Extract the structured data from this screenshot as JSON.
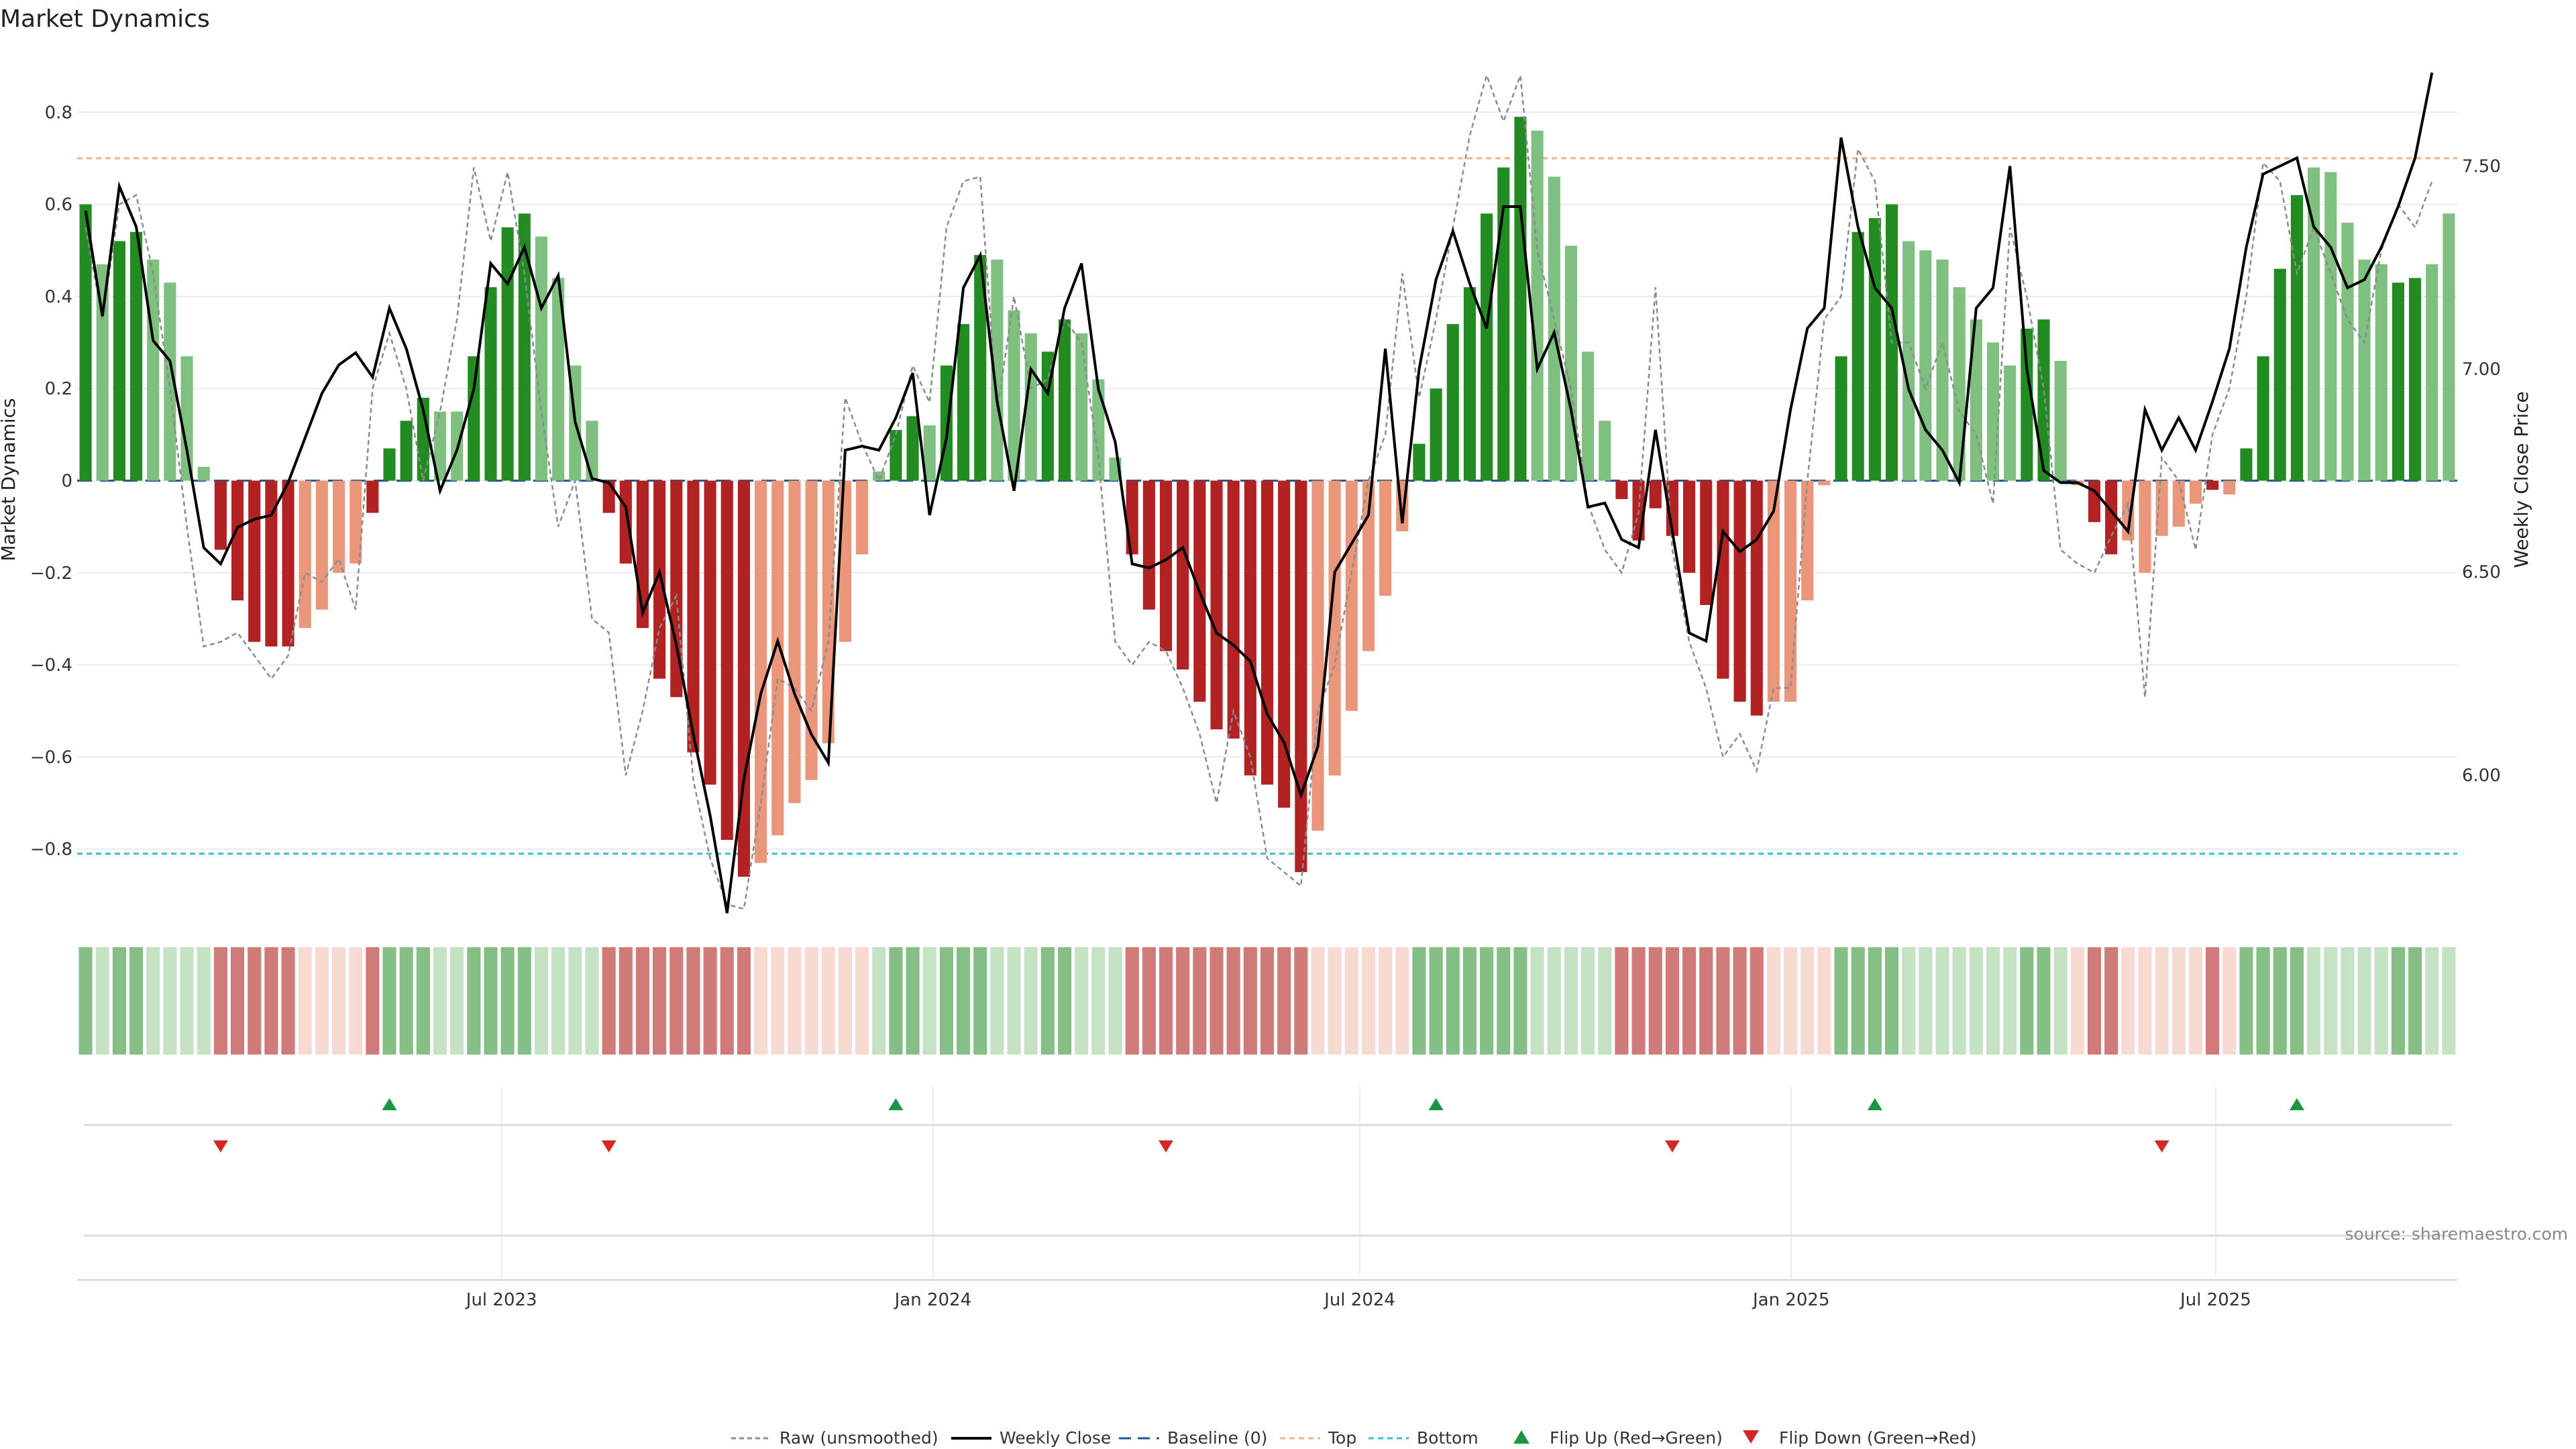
{
  "title": "Market Dynamics",
  "source": "source: sharemaestro.com",
  "colors": {
    "strong_green": "#228b22",
    "light_green": "#7fbf7f",
    "strong_red": "#b22222",
    "light_red": "#e9967a",
    "raw": "#8c8c8c",
    "close": "#000000",
    "baseline": "#1f5a96",
    "top": "#f0b48c",
    "bottom": "#33c3d6",
    "flip_up": "#1a9641",
    "flip_down": "#d62728"
  },
  "chart_data": {
    "type": "bar",
    "title": "Market Dynamics",
    "ylabel": "Market Dynamics",
    "y2label": "Weekly Close Price",
    "ylim": [
      -0.93,
      0.93
    ],
    "y2lim": [
      5.67,
      7.78
    ],
    "yticks": [
      0.8,
      0.6,
      0.4,
      0.2,
      0,
      -0.2,
      -0.4,
      -0.6,
      -0.8
    ],
    "yticklabels": [
      "0.8",
      "0.6",
      "0.4",
      "0.2",
      "0",
      "−0.2",
      "−0.4",
      "−0.6",
      "−0.8"
    ],
    "y2ticks": [
      7.5,
      7.0,
      6.5,
      6.0
    ],
    "y2ticklabels": [
      "7.50",
      "7.00",
      "6.50",
      "6.00"
    ],
    "xaxis": {
      "start": "2023-01-01",
      "end": "2025-10-12",
      "ticks": [
        {
          "date": "2023-07-01",
          "label": "Jul 2023"
        },
        {
          "date": "2024-01-01",
          "label": "Jan 2024"
        },
        {
          "date": "2024-07-01",
          "label": "Jul 2024"
        },
        {
          "date": "2025-01-01",
          "label": "Jan 2025"
        },
        {
          "date": "2025-07-01",
          "label": "Jul 2025"
        }
      ]
    },
    "top_threshold": 0.7,
    "bottom_threshold": -0.81,
    "baseline": 0,
    "legend": {
      "placement": "bottom-center",
      "entries": [
        {
          "key": "raw",
          "label": "Raw (unsmoothed)"
        },
        {
          "key": "close",
          "label": "Weekly Close"
        },
        {
          "key": "baseline",
          "label": "Baseline (0)"
        },
        {
          "key": "top",
          "label": "Top"
        },
        {
          "key": "bottom",
          "label": "Bottom"
        },
        {
          "key": "flip_up",
          "label": "Flip Up (Red→Green)"
        },
        {
          "key": "flip_down",
          "label": "Flip Down (Green→Red)"
        }
      ]
    },
    "momentum": [
      0.6,
      0.47,
      0.52,
      0.54,
      0.48,
      0.43,
      0.27,
      0.03,
      -0.15,
      -0.26,
      -0.35,
      -0.36,
      -0.36,
      -0.32,
      -0.28,
      -0.2,
      -0.18,
      -0.07,
      0.07,
      0.13,
      0.18,
      0.15,
      0.15,
      0.27,
      0.42,
      0.55,
      0.58,
      0.53,
      0.44,
      0.25,
      0.13,
      -0.07,
      -0.18,
      -0.32,
      -0.43,
      -0.47,
      -0.59,
      -0.66,
      -0.78,
      -0.86,
      -0.83,
      -0.77,
      -0.7,
      -0.65,
      -0.57,
      -0.35,
      -0.16,
      0.02,
      0.11,
      0.14,
      0.12,
      0.25,
      0.34,
      0.49,
      0.48,
      0.37,
      0.32,
      0.28,
      0.35,
      0.32,
      0.22,
      0.05,
      -0.16,
      -0.28,
      -0.37,
      -0.41,
      -0.48,
      -0.54,
      -0.56,
      -0.64,
      -0.66,
      -0.71,
      -0.85,
      -0.76,
      -0.64,
      -0.5,
      -0.37,
      -0.25,
      -0.11,
      0.08,
      0.2,
      0.34,
      0.42,
      0.58,
      0.68,
      0.79,
      0.76,
      0.66,
      0.51,
      0.28,
      0.13,
      -0.04,
      -0.13,
      -0.06,
      -0.12,
      -0.2,
      -0.27,
      -0.43,
      -0.48,
      -0.51,
      -0.48,
      -0.48,
      -0.26,
      -0.01,
      0.27,
      0.54,
      0.57,
      0.6,
      0.52,
      0.5,
      0.48,
      0.42,
      0.35,
      0.3,
      0.25,
      0.33,
      0.35,
      0.26,
      -0.01,
      -0.09,
      -0.16,
      -0.13,
      -0.2,
      -0.12,
      -0.1,
      -0.05,
      -0.02,
      -0.03,
      0.07,
      0.27,
      0.46,
      0.62,
      0.68,
      0.67,
      0.56,
      0.48,
      0.47,
      0.43,
      0.44,
      0.47,
      0.58
    ],
    "momentum_intensity": [
      "strong",
      "light",
      "strong",
      "strong",
      "light",
      "light",
      "light",
      "light",
      "strong",
      "strong",
      "strong",
      "strong",
      "strong",
      "light",
      "light",
      "light",
      "light",
      "strong",
      "strong",
      "strong",
      "strong",
      "light",
      "light",
      "strong",
      "strong",
      "strong",
      "strong",
      "light",
      "light",
      "light",
      "light",
      "strong",
      "strong",
      "strong",
      "strong",
      "strong",
      "strong",
      "strong",
      "strong",
      "strong",
      "light",
      "light",
      "light",
      "light",
      "light",
      "light",
      "light",
      "light",
      "strong",
      "strong",
      "light",
      "strong",
      "strong",
      "strong",
      "light",
      "light",
      "light",
      "strong",
      "strong",
      "light",
      "light",
      "light",
      "strong",
      "strong",
      "strong",
      "strong",
      "strong",
      "strong",
      "strong",
      "strong",
      "strong",
      "strong",
      "strong",
      "light",
      "light",
      "light",
      "light",
      "light",
      "light",
      "strong",
      "strong",
      "strong",
      "strong",
      "strong",
      "strong",
      "strong",
      "light",
      "light",
      "light",
      "light",
      "light",
      "strong",
      "strong",
      "strong",
      "strong",
      "strong",
      "strong",
      "strong",
      "strong",
      "strong",
      "light",
      "light",
      "light",
      "light",
      "strong",
      "strong",
      "strong",
      "strong",
      "light",
      "light",
      "light",
      "light",
      "light",
      "light",
      "light",
      "strong",
      "strong",
      "light",
      "light",
      "strong",
      "strong",
      "light",
      "light",
      "light",
      "light",
      "light",
      "strong",
      "light",
      "strong",
      "strong",
      "strong",
      "strong",
      "light",
      "light",
      "light",
      "light",
      "light",
      "strong",
      "strong"
    ],
    "raw": [
      0.55,
      0.35,
      0.6,
      0.62,
      0.45,
      0.2,
      -0.1,
      -0.36,
      -0.35,
      -0.33,
      -0.38,
      -0.43,
      -0.38,
      -0.2,
      -0.22,
      -0.17,
      -0.28,
      0.2,
      0.32,
      0.2,
      0.0,
      0.15,
      0.35,
      0.68,
      0.52,
      0.67,
      0.45,
      0.15,
      -0.1,
      0.0,
      -0.3,
      -0.33,
      -0.64,
      -0.5,
      -0.32,
      -0.25,
      -0.65,
      -0.82,
      -0.92,
      -0.93,
      -0.7,
      -0.43,
      -0.45,
      -0.5,
      -0.35,
      0.18,
      0.08,
      0.0,
      0.1,
      0.25,
      0.17,
      0.55,
      0.65,
      0.66,
      0.15,
      0.4,
      0.2,
      0.22,
      0.35,
      0.3,
      0.05,
      -0.35,
      -0.4,
      -0.35,
      -0.37,
      -0.45,
      -0.55,
      -0.7,
      -0.5,
      -0.6,
      -0.82,
      -0.85,
      -0.88,
      -0.5,
      -0.4,
      -0.2,
      0.0,
      0.1,
      0.45,
      0.18,
      0.35,
      0.55,
      0.75,
      0.88,
      0.78,
      0.88,
      0.5,
      0.35,
      0.2,
      -0.05,
      -0.15,
      -0.2,
      -0.07,
      0.42,
      -0.15,
      -0.35,
      -0.45,
      -0.6,
      -0.55,
      -0.63,
      -0.45,
      -0.45,
      0.0,
      0.35,
      0.4,
      0.72,
      0.65,
      0.3,
      0.3,
      0.2,
      0.3,
      0.15,
      0.1,
      -0.05,
      0.55,
      0.4,
      0.2,
      -0.15,
      -0.18,
      -0.2,
      -0.12,
      -0.05,
      -0.47,
      0.05,
      0.0,
      -0.15,
      0.1,
      0.2,
      0.4,
      0.69,
      0.65,
      0.45,
      0.55,
      0.45,
      0.35,
      0.3,
      0.5,
      0.6,
      0.55,
      0.65
    ],
    "close": [
      7.39,
      7.13,
      7.45,
      7.35,
      7.07,
      7.02,
      6.8,
      6.56,
      6.52,
      6.61,
      6.63,
      6.64,
      6.72,
      6.83,
      6.94,
      7.01,
      7.04,
      6.98,
      7.15,
      7.05,
      6.9,
      6.7,
      6.8,
      6.95,
      7.26,
      7.21,
      7.3,
      7.15,
      7.23,
      6.87,
      6.73,
      6.72,
      6.66,
      6.4,
      6.5,
      6.32,
      6.1,
      5.9,
      5.66,
      5.99,
      6.2,
      6.33,
      6.2,
      6.1,
      6.03,
      6.8,
      6.81,
      6.8,
      6.88,
      6.99,
      6.64,
      6.83,
      7.2,
      7.28,
      6.92,
      6.7,
      7.0,
      6.94,
      7.15,
      7.26,
      6.95,
      6.82,
      6.52,
      6.51,
      6.53,
      6.56,
      6.45,
      6.35,
      6.32,
      6.28,
      6.15,
      6.08,
      5.95,
      6.07,
      6.5,
      6.57,
      6.64,
      7.05,
      6.62,
      7.0,
      7.22,
      7.34,
      7.21,
      7.1,
      7.4,
      7.4,
      7.0,
      7.09,
      6.9,
      6.66,
      6.67,
      6.58,
      6.56,
      6.85,
      6.6,
      6.35,
      6.33,
      6.6,
      6.55,
      6.58,
      6.65,
      6.9,
      7.1,
      7.15,
      7.57,
      7.35,
      7.2,
      7.15,
      6.95,
      6.85,
      6.8,
      6.72,
      7.15,
      7.2,
      7.5,
      7.0,
      6.75,
      6.72,
      6.72,
      6.7,
      6.65,
      6.6,
      6.9,
      6.8,
      6.88,
      6.8,
      6.92,
      7.05,
      7.3,
      7.48,
      7.5,
      7.52,
      7.35,
      7.3,
      7.2,
      7.22,
      7.3,
      7.4,
      7.52,
      7.73
    ],
    "strip_tone": "each cell repeats the momentum bar colour at reduced opacity",
    "flips_up_index": [
      18,
      48,
      80,
      106,
      131
    ],
    "flips_down_index": [
      8,
      31,
      64,
      94,
      123
    ]
  }
}
